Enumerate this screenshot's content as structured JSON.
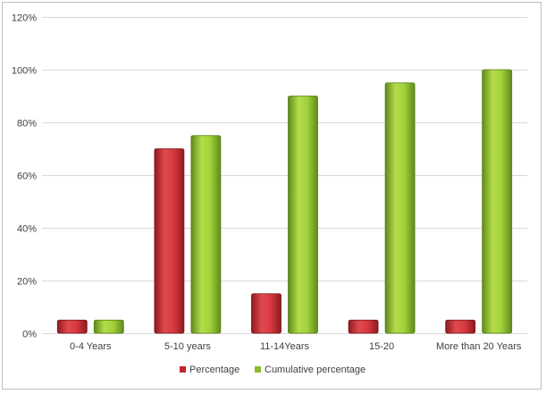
{
  "chart_data": {
    "type": "bar",
    "title": "",
    "xlabel": "",
    "ylabel": "",
    "categories": [
      "0-4 Years",
      "5-10 years",
      "11-14Years",
      "15-20",
      "More than 20 Years"
    ],
    "series": [
      {
        "name": "Percentage",
        "values": [
          5,
          70,
          15,
          5,
          5
        ],
        "color": "#c0282d"
      },
      {
        "name": "Cumulative percentage",
        "values": [
          5,
          75,
          90,
          95,
          100
        ],
        "color": "#8bbb2c"
      }
    ],
    "ylim": [
      0,
      120
    ],
    "yticks": [
      0,
      20,
      40,
      60,
      80,
      100,
      120
    ],
    "ytick_labels": [
      "0%",
      "20%",
      "40%",
      "60%",
      "80%",
      "100%",
      "120%"
    ],
    "grid": true,
    "legend_position": "bottom",
    "gridline_color": "#d9d9d9"
  }
}
